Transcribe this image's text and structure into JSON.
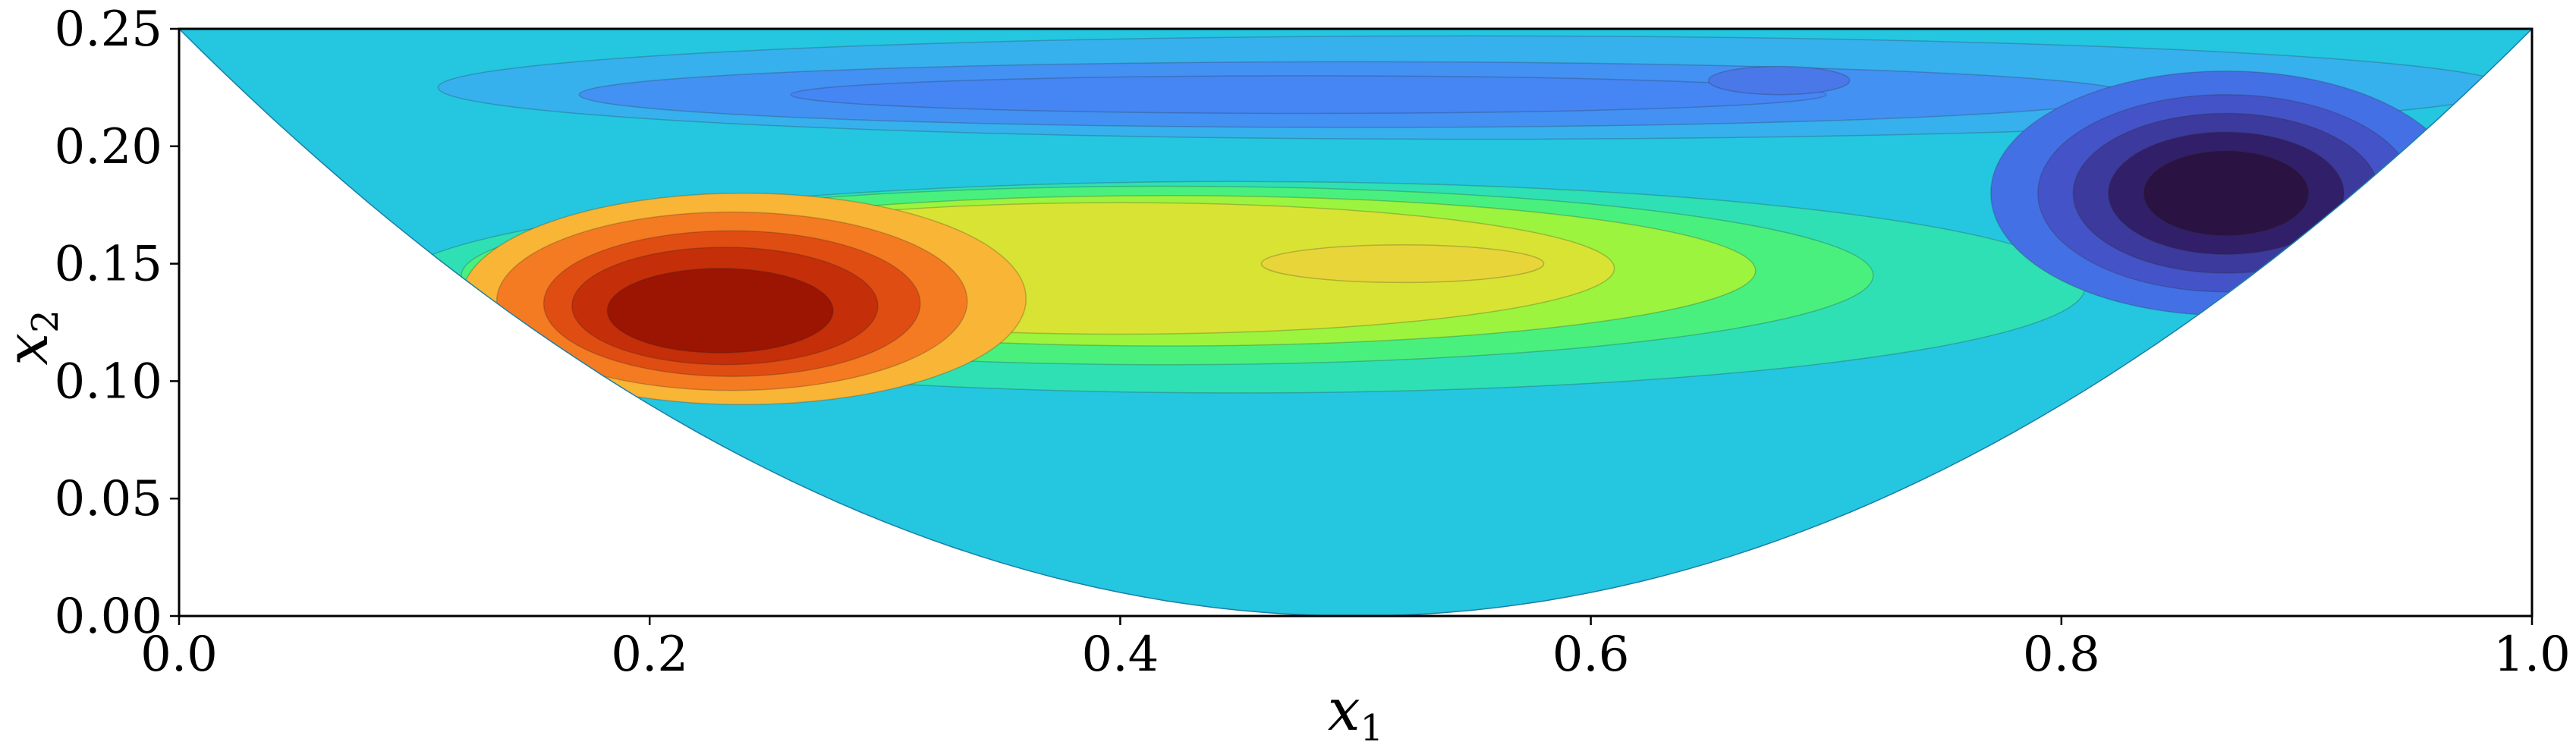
{
  "chart_data": {
    "type": "heatmap",
    "subtype": "filled-contour",
    "title": "",
    "xlabel": "x",
    "xlabel_sub": "1",
    "ylabel": "x",
    "ylabel_sub": "2",
    "xlim": [
      0.0,
      1.0
    ],
    "ylim": [
      0.0,
      0.25
    ],
    "xticks": [
      "0.0",
      "0.2",
      "0.4",
      "0.6",
      "0.8",
      "1.0"
    ],
    "yticks": [
      "0.00",
      "0.05",
      "0.10",
      "0.15",
      "0.20",
      "0.25"
    ],
    "grid": false,
    "colormap": "turbo",
    "domain_boundary": "parabola",
    "features": [
      {
        "kind": "max",
        "x": 0.23,
        "y": 0.13
      },
      {
        "kind": "plateau",
        "x": 0.52,
        "y": 0.15
      },
      {
        "kind": "min",
        "x": 0.87,
        "y": 0.18
      },
      {
        "kind": "weak-min",
        "x": 0.48,
        "y": 0.22
      },
      {
        "kind": "weak-min",
        "x": 0.68,
        "y": 0.228
      }
    ],
    "colors": {
      "background_field": "#25c6e0",
      "axes": "#000000"
    }
  }
}
